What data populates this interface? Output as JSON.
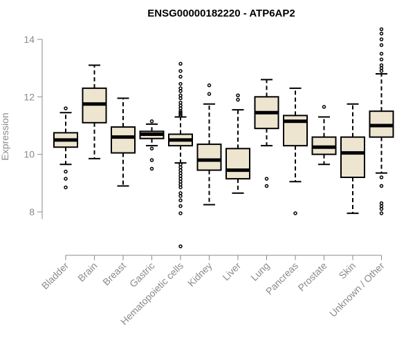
{
  "chart_data": {
    "type": "boxplot",
    "title": "ENSG00000182220 - ATP6AP2",
    "xlabel": "",
    "ylabel": "Expression",
    "ylim": [
      6.6,
      14.5
    ],
    "yticks": [
      8,
      10,
      12,
      14
    ],
    "box_color": "#ede5cf",
    "categories": [
      "Bladder",
      "Brain",
      "Breast",
      "Gastric",
      "Hematopoietic cells",
      "Kidney",
      "Liver",
      "Lung",
      "Pancreas",
      "Prostate",
      "Skin",
      "Unknown / Other"
    ],
    "series": [
      {
        "name": "Bladder",
        "q1": 10.25,
        "median": 10.5,
        "q3": 10.75,
        "whisker_low": 9.65,
        "whisker_high": 11.45,
        "outliers": [
          11.6,
          9.4,
          9.15,
          8.85
        ]
      },
      {
        "name": "Brain",
        "q1": 11.1,
        "median": 11.75,
        "q3": 12.3,
        "whisker_low": 9.85,
        "whisker_high": 13.1,
        "outliers": []
      },
      {
        "name": "Breast",
        "q1": 10.05,
        "median": 10.6,
        "q3": 10.95,
        "whisker_low": 8.9,
        "whisker_high": 11.95,
        "outliers": []
      },
      {
        "name": "Gastric",
        "q1": 10.55,
        "median": 10.7,
        "q3": 10.8,
        "whisker_low": 10.3,
        "whisker_high": 11.05,
        "outliers": [
          11.15,
          10.2,
          9.8,
          9.5
        ]
      },
      {
        "name": "Hematopoietic cells",
        "q1": 10.3,
        "median": 10.5,
        "q3": 10.7,
        "whisker_low": 9.7,
        "whisker_high": 11.3,
        "outliers": [
          13.15,
          12.9,
          12.7,
          12.45,
          12.3,
          12.2,
          12.05,
          11.95,
          11.8,
          11.7,
          11.6,
          11.5,
          11.45,
          11.4,
          11.35,
          9.65,
          9.55,
          9.45,
          9.35,
          9.25,
          9.15,
          9.05,
          8.95,
          8.85,
          8.65,
          8.55,
          8.4,
          8.2,
          7.95,
          6.8
        ]
      },
      {
        "name": "Kidney",
        "q1": 9.45,
        "median": 9.8,
        "q3": 10.35,
        "whisker_low": 8.25,
        "whisker_high": 11.75,
        "outliers": [
          12.4,
          12.1
        ]
      },
      {
        "name": "Liver",
        "q1": 9.15,
        "median": 9.45,
        "q3": 10.2,
        "whisker_low": 8.65,
        "whisker_high": 11.55,
        "outliers": [
          12.05,
          11.9
        ]
      },
      {
        "name": "Lung",
        "q1": 10.9,
        "median": 11.45,
        "q3": 12.0,
        "whisker_low": 10.3,
        "whisker_high": 12.6,
        "outliers": [
          9.15,
          8.9
        ]
      },
      {
        "name": "Pancreas",
        "q1": 10.3,
        "median": 11.15,
        "q3": 11.35,
        "whisker_low": 9.05,
        "whisker_high": 12.3,
        "outliers": [
          7.95
        ]
      },
      {
        "name": "Prostate",
        "q1": 10.0,
        "median": 10.25,
        "q3": 10.6,
        "whisker_low": 9.65,
        "whisker_high": 11.3,
        "outliers": [
          11.65
        ]
      },
      {
        "name": "Skin",
        "q1": 9.2,
        "median": 10.05,
        "q3": 10.6,
        "whisker_low": 7.95,
        "whisker_high": 11.75,
        "outliers": []
      },
      {
        "name": "Unknown / Other",
        "q1": 10.6,
        "median": 11.0,
        "q3": 11.5,
        "whisker_low": 9.35,
        "whisker_high": 12.8,
        "outliers": [
          14.35,
          14.2,
          14.0,
          13.8,
          13.5,
          13.3,
          13.1,
          13.0,
          12.9,
          9.2,
          8.9,
          8.3,
          8.2,
          8.1,
          7.95
        ]
      }
    ]
  }
}
